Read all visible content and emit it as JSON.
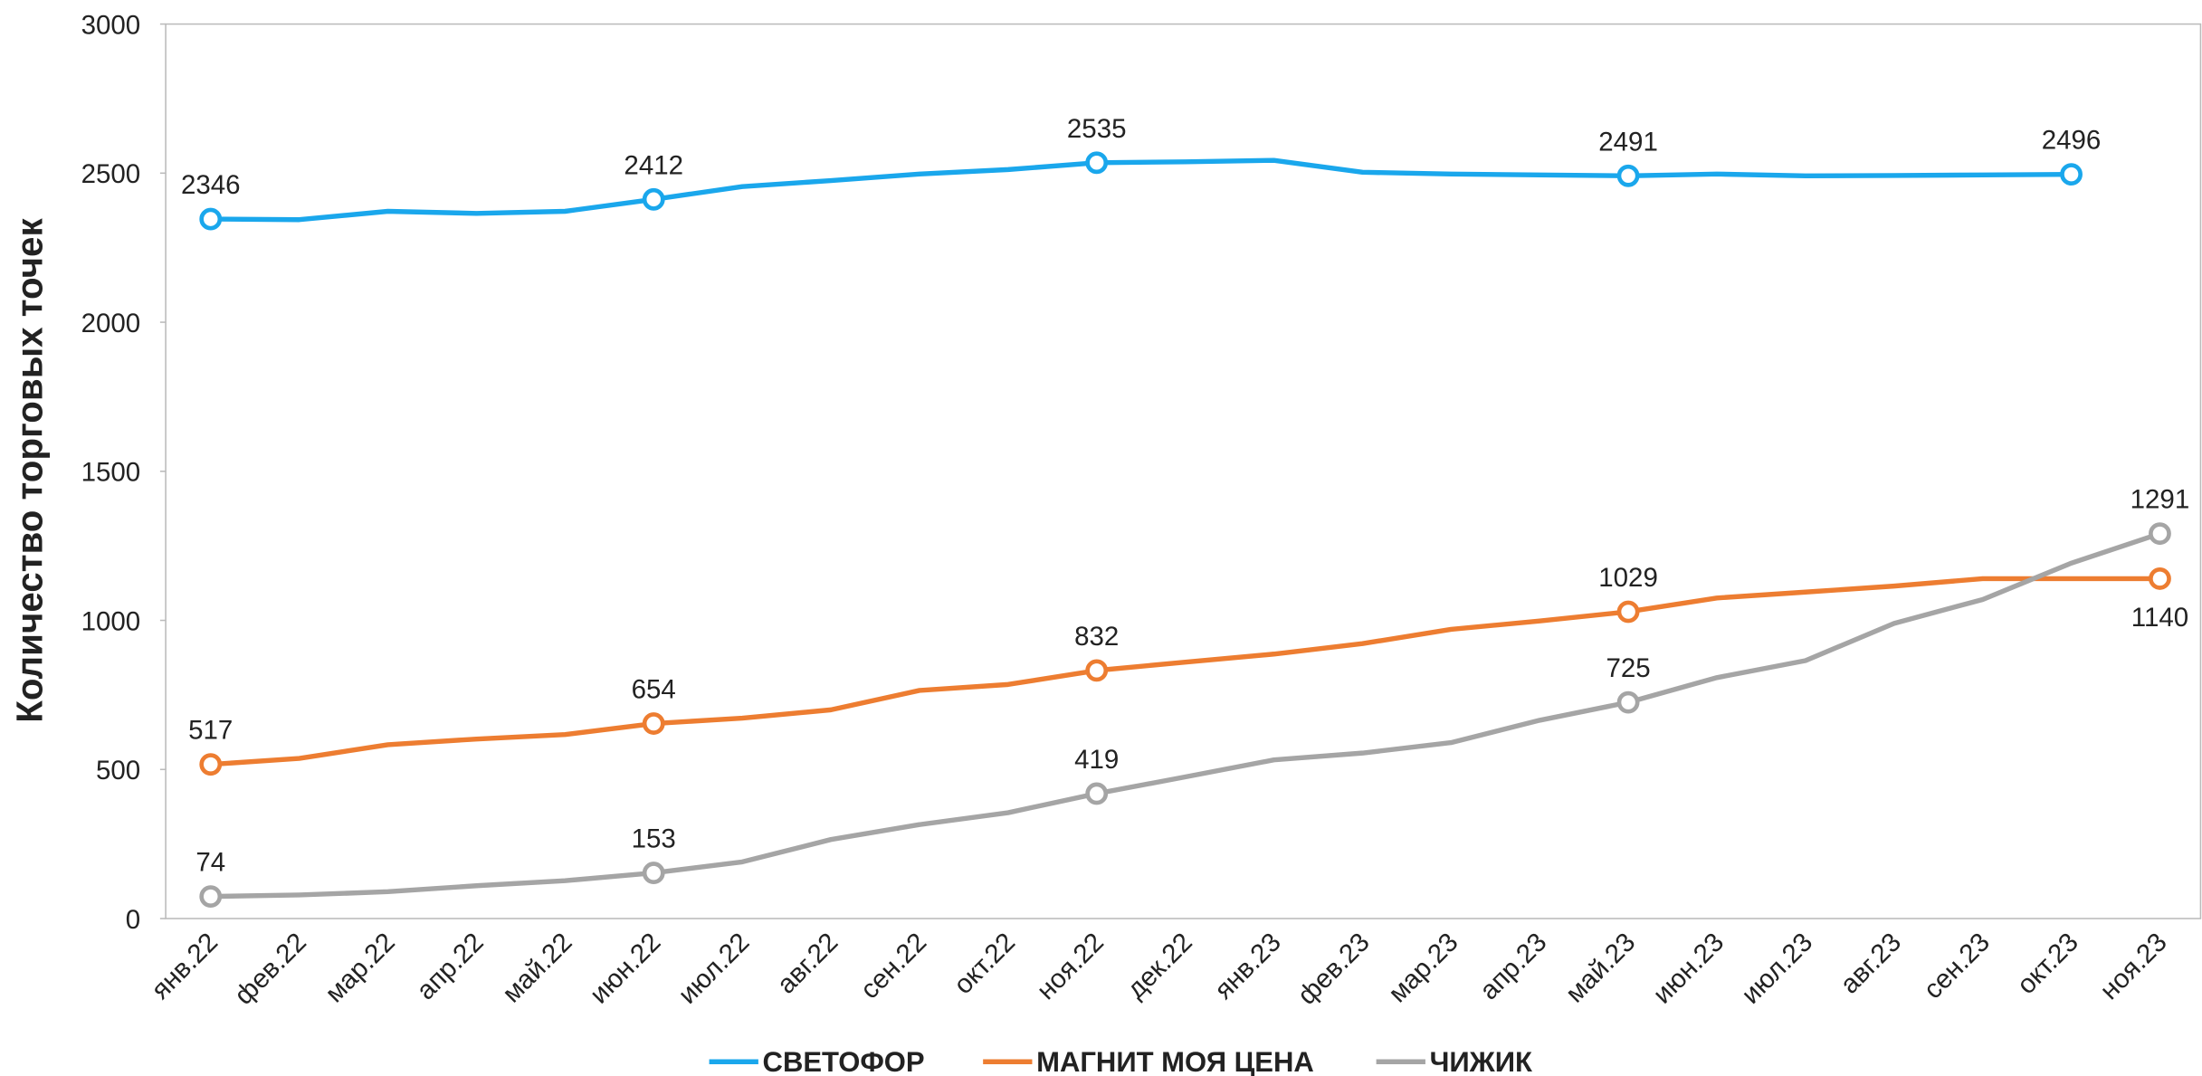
{
  "chart_data": {
    "type": "line",
    "y_label": "Количество торговых точек",
    "categories": [
      "янв.22",
      "фев.22",
      "мар.22",
      "апр.22",
      "май.22",
      "июн.22",
      "июл.22",
      "авг.22",
      "сен.22",
      "окт.22",
      "ноя.22",
      "дек.22",
      "янв.23",
      "фев.23",
      "мар.23",
      "апр.23",
      "май.23",
      "июн.23",
      "июл.23",
      "авг.23",
      "сен.23",
      "окт.23",
      "ноя.23"
    ],
    "series": [
      {
        "name": "СВЕТОФОР",
        "color": "#1aa7ec",
        "marked": [
          0,
          5,
          10,
          16,
          21
        ],
        "values": [
          2346,
          2344,
          2372,
          2365,
          2372,
          2412,
          2455,
          2475,
          2497,
          2512,
          2535,
          2538,
          2543,
          2503,
          2497,
          2494,
          2491,
          2497,
          2491,
          2492,
          2494,
          2496,
          null
        ]
      },
      {
        "name": "МАГНИТ МОЯ ЦЕНА",
        "color": "#ed7d31",
        "marked": [
          0,
          5,
          10,
          16,
          22
        ],
        "values": [
          517,
          537,
          583,
          602,
          617,
          654,
          672,
          700,
          765,
          785,
          832,
          860,
          887,
          922,
          970,
          998,
          1029,
          1075,
          1095,
          1115,
          1140,
          1140,
          1140
        ]
      },
      {
        "name": "ЧИЖИК",
        "color": "#a5a5a5",
        "marked": [
          0,
          5,
          10,
          16,
          22
        ],
        "values": [
          74,
          79,
          90,
          110,
          127,
          153,
          190,
          265,
          315,
          355,
          419,
          475,
          532,
          555,
          590,
          665,
          725,
          808,
          865,
          990,
          1070,
          1192,
          1291
        ]
      }
    ],
    "ylim": [
      0,
      3000
    ],
    "yticks": [
      0,
      500,
      1000,
      1500,
      2000,
      2500,
      3000
    ],
    "legend": "bottom"
  }
}
